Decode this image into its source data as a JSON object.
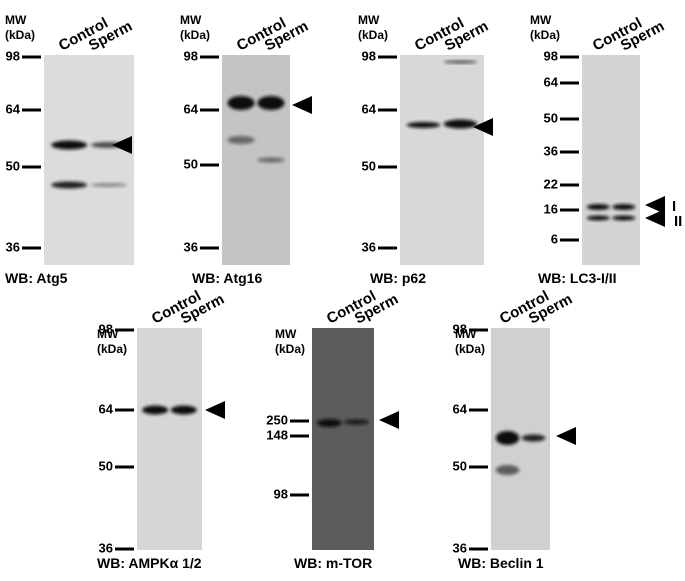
{
  "panels": [
    {
      "mw": "MW",
      "kda": "(kDa)",
      "lanes": [
        "Control",
        "Sperm"
      ],
      "markers": [
        "98",
        "64",
        "50",
        "36"
      ],
      "caption": "WB: Atg5"
    },
    {
      "mw": "MW",
      "kda": "(kDa)",
      "lanes": [
        "Control",
        "Sperm"
      ],
      "markers": [
        "98",
        "64",
        "50",
        "36"
      ],
      "caption": "WB: Atg16"
    },
    {
      "mw": "MW",
      "kda": "(kDa)",
      "lanes": [
        "Control",
        "Sperm"
      ],
      "markers": [
        "98",
        "64",
        "50",
        "36"
      ],
      "caption": "WB: p62"
    },
    {
      "mw": "MW",
      "kda": "(kDa)",
      "lanes": [
        "Control",
        "Sperm"
      ],
      "markers": [
        "98",
        "64",
        "50",
        "36",
        "22",
        "16",
        "6"
      ],
      "caption": "WB: LC3-I/II",
      "arrow_labels": [
        "I",
        "II"
      ]
    },
    {
      "mw": "MW",
      "kda": "(kDa)",
      "lanes": [
        "Control",
        "Sperm"
      ],
      "markers": [
        "98",
        "64",
        "50",
        "36"
      ],
      "caption": "WB: AMPKα 1/2"
    },
    {
      "mw": "MW",
      "kda": "(kDa)",
      "lanes": [
        "Control",
        "Sperm"
      ],
      "markers": [
        "250",
        "148",
        "98"
      ],
      "caption": "WB: m-TOR"
    },
    {
      "mw": "MW",
      "kda": "(kDa)",
      "lanes": [
        "Control",
        "Sperm"
      ],
      "markers": [
        "98",
        "64",
        "50",
        "36"
      ],
      "caption": "WB: Beclin 1"
    }
  ]
}
